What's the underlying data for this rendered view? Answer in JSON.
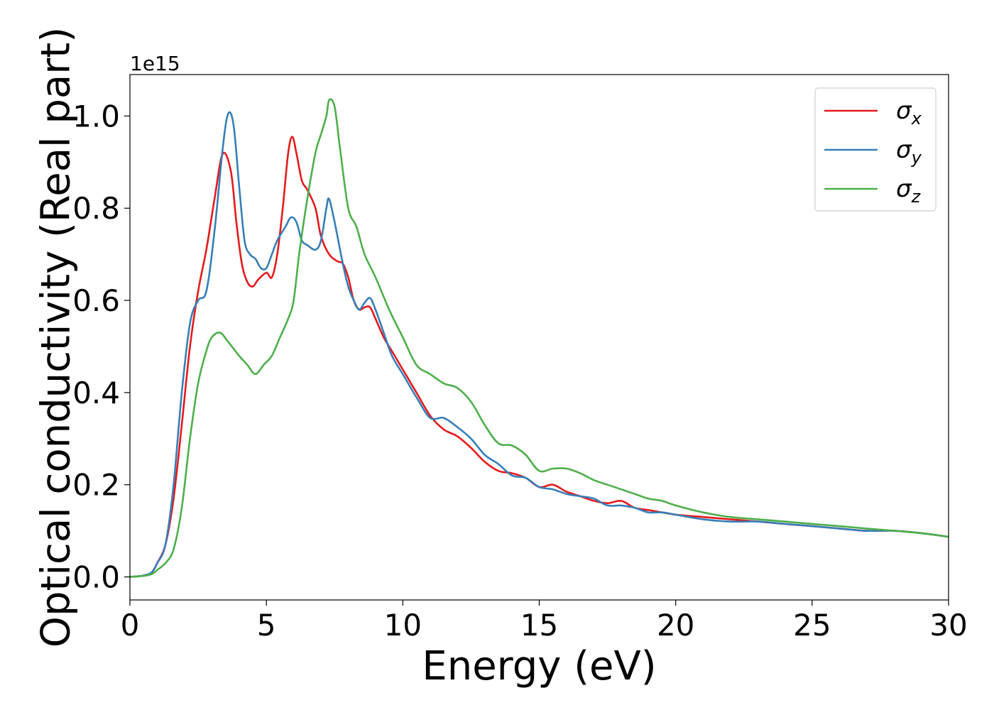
{
  "chart_data": {
    "type": "line",
    "xlabel": "Energy (eV)",
    "ylabel": "Optical conductivity (Real part)",
    "y_offset_text": "1e15",
    "xlim": [
      0,
      30
    ],
    "ylim": [
      -0.05,
      1.09
    ],
    "x_ticks": [
      0,
      5,
      10,
      15,
      20,
      25,
      30
    ],
    "x_tick_labels": [
      "0",
      "5",
      "10",
      "15",
      "20",
      "25",
      "30"
    ],
    "y_ticks": [
      0.0,
      0.2,
      0.4,
      0.6,
      0.8,
      1.0
    ],
    "y_tick_labels": [
      "0.0",
      "0.2",
      "0.4",
      "0.6",
      "0.8",
      "1.0"
    ],
    "grid": false,
    "legend_position": "top-right",
    "series": [
      {
        "name": "σ",
        "subscript": "x",
        "color": "#e41a1c",
        "x": [
          0,
          0.5,
          0.8,
          1.0,
          1.3,
          1.6,
          1.9,
          2.2,
          2.5,
          2.8,
          3.1,
          3.4,
          3.7,
          3.9,
          4.1,
          4.3,
          4.5,
          4.7,
          5.0,
          5.2,
          5.4,
          5.6,
          5.8,
          5.95,
          6.1,
          6.3,
          6.5,
          6.8,
          7.0,
          7.3,
          7.6,
          7.8,
          8.0,
          8.2,
          8.4,
          8.6,
          8.8,
          9.0,
          9.3,
          9.6,
          10.0,
          10.5,
          11.0,
          11.5,
          12.0,
          12.5,
          13.0,
          13.5,
          14.0,
          14.5,
          15.0,
          15.5,
          16.0,
          16.5,
          17.0,
          17.5,
          18.0,
          18.5,
          19.0,
          19.5,
          20.0,
          21.0,
          22.0,
          23.0,
          24.0,
          25.0,
          26.0,
          27.0,
          28.0,
          29.0,
          30.0
        ],
        "y": [
          0.0,
          0.003,
          0.01,
          0.03,
          0.07,
          0.17,
          0.33,
          0.5,
          0.62,
          0.71,
          0.82,
          0.918,
          0.88,
          0.77,
          0.68,
          0.64,
          0.63,
          0.645,
          0.66,
          0.65,
          0.7,
          0.8,
          0.92,
          0.955,
          0.92,
          0.86,
          0.84,
          0.8,
          0.74,
          0.7,
          0.685,
          0.68,
          0.65,
          0.6,
          0.58,
          0.585,
          0.585,
          0.56,
          0.52,
          0.49,
          0.45,
          0.4,
          0.35,
          0.32,
          0.305,
          0.28,
          0.25,
          0.23,
          0.225,
          0.215,
          0.195,
          0.2,
          0.185,
          0.175,
          0.165,
          0.16,
          0.165,
          0.15,
          0.145,
          0.14,
          0.135,
          0.13,
          0.125,
          0.12,
          0.115,
          0.11,
          0.105,
          0.1,
          0.1,
          0.095,
          0.087
        ]
      },
      {
        "name": "σ",
        "subscript": "y",
        "color": "#377eb8",
        "x": [
          0,
          0.5,
          0.8,
          1.0,
          1.3,
          1.6,
          1.9,
          2.2,
          2.5,
          2.8,
          3.1,
          3.4,
          3.6,
          3.8,
          4.0,
          4.2,
          4.4,
          4.6,
          4.8,
          5.0,
          5.2,
          5.4,
          5.7,
          5.9,
          6.1,
          6.3,
          6.5,
          6.8,
          7.0,
          7.2,
          7.3,
          7.5,
          7.8,
          8.0,
          8.2,
          8.4,
          8.6,
          8.8,
          9.0,
          9.3,
          9.6,
          10.0,
          10.5,
          11.0,
          11.5,
          12.0,
          12.5,
          13.0,
          13.5,
          14.0,
          14.5,
          15.0,
          15.5,
          16.0,
          16.5,
          17.0,
          17.5,
          18.0,
          18.5,
          19.0,
          19.5,
          20.0,
          21.0,
          22.0,
          23.0,
          24.0,
          25.0,
          26.0,
          27.0,
          28.0,
          29.0,
          30.0
        ],
        "y": [
          0.0,
          0.003,
          0.01,
          0.03,
          0.07,
          0.2,
          0.4,
          0.55,
          0.6,
          0.62,
          0.75,
          0.93,
          1.005,
          0.98,
          0.85,
          0.73,
          0.7,
          0.69,
          0.67,
          0.67,
          0.7,
          0.73,
          0.76,
          0.78,
          0.77,
          0.73,
          0.72,
          0.71,
          0.73,
          0.8,
          0.82,
          0.77,
          0.68,
          0.63,
          0.6,
          0.58,
          0.595,
          0.605,
          0.58,
          0.53,
          0.48,
          0.44,
          0.39,
          0.345,
          0.345,
          0.325,
          0.3,
          0.265,
          0.245,
          0.22,
          0.215,
          0.195,
          0.19,
          0.18,
          0.175,
          0.17,
          0.155,
          0.155,
          0.15,
          0.14,
          0.14,
          0.135,
          0.125,
          0.12,
          0.12,
          0.115,
          0.11,
          0.105,
          0.1,
          0.1,
          0.095,
          0.087
        ]
      },
      {
        "name": "σ",
        "subscript": "z",
        "color": "#4daf4a",
        "x": [
          0,
          0.5,
          0.8,
          1.0,
          1.3,
          1.6,
          1.9,
          2.2,
          2.5,
          2.8,
          3.0,
          3.3,
          3.6,
          4.0,
          4.3,
          4.6,
          4.9,
          5.2,
          5.5,
          5.8,
          6.0,
          6.2,
          6.5,
          6.8,
          7.0,
          7.2,
          7.3,
          7.5,
          7.7,
          8.0,
          8.3,
          8.6,
          9.0,
          9.5,
          10.0,
          10.5,
          11.0,
          11.5,
          12.0,
          12.5,
          13.0,
          13.5,
          14.0,
          14.5,
          15.0,
          15.5,
          16.0,
          16.5,
          17.0,
          17.5,
          18.0,
          18.5,
          19.0,
          19.5,
          20.0,
          21.0,
          22.0,
          23.0,
          24.0,
          25.0,
          26.0,
          27.0,
          28.0,
          29.0,
          30.0
        ],
        "y": [
          0.0,
          0.002,
          0.006,
          0.015,
          0.03,
          0.06,
          0.15,
          0.3,
          0.42,
          0.49,
          0.52,
          0.53,
          0.51,
          0.48,
          0.46,
          0.44,
          0.46,
          0.48,
          0.52,
          0.56,
          0.6,
          0.7,
          0.82,
          0.92,
          0.96,
          1.0,
          1.035,
          1.02,
          0.93,
          0.8,
          0.76,
          0.7,
          0.65,
          0.58,
          0.52,
          0.46,
          0.44,
          0.42,
          0.41,
          0.38,
          0.33,
          0.29,
          0.285,
          0.265,
          0.23,
          0.235,
          0.235,
          0.225,
          0.21,
          0.2,
          0.19,
          0.18,
          0.17,
          0.165,
          0.155,
          0.14,
          0.13,
          0.125,
          0.12,
          0.115,
          0.11,
          0.105,
          0.1,
          0.095,
          0.087
        ]
      }
    ]
  }
}
